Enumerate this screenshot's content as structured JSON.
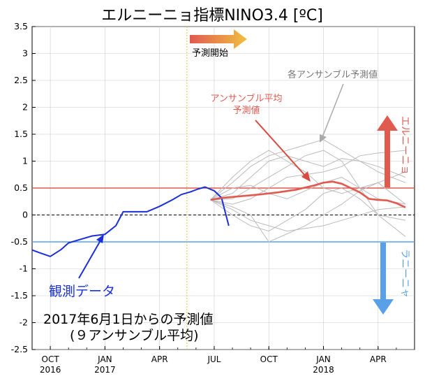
{
  "chart_data": {
    "type": "line",
    "title": "エルニーニョ指標NINO3.4 [ºC]",
    "ylim": [
      -2.5,
      3.5
    ],
    "yticks": [
      "3.5",
      "3",
      "2.5",
      "2",
      "1.5",
      "1",
      "0.5",
      "0",
      "-0.5",
      "-1",
      "-1.5",
      "-2",
      "-2.5"
    ],
    "ytick_values": [
      3.5,
      3,
      2.5,
      2,
      1.5,
      1,
      0.5,
      0,
      -0.5,
      -1,
      -1.5,
      -2,
      -2.5
    ],
    "xticks": [
      {
        "label": "OCT",
        "year": "2016",
        "month_index": 0
      },
      {
        "label": "JAN",
        "year": "2017",
        "month_index": 3
      },
      {
        "label": "APR",
        "year": "",
        "month_index": 6
      },
      {
        "label": "JUL",
        "year": "",
        "month_index": 9
      },
      {
        "label": "OCT",
        "year": "",
        "month_index": 12
      },
      {
        "label": "JAN",
        "year": "2018",
        "month_index": 15
      },
      {
        "label": "APR",
        "year": "",
        "month_index": 18
      }
    ],
    "xlim": [
      -1,
      20
    ],
    "forecast_start": 7.5,
    "thresholds": [
      {
        "value": 0.5,
        "color": "#e05a50"
      },
      {
        "value": -0.5,
        "color": "#5aa0e8"
      },
      {
        "value": 0,
        "color": "#000000"
      }
    ],
    "series": [
      {
        "name": "観測データ",
        "color": "#1a2fd6",
        "x": [
          -1,
          -0.6,
          0,
          0.6,
          1,
          1.7,
          2.3,
          3,
          3.6,
          4,
          4.7,
          5.3,
          6,
          6.7,
          7.2,
          7.7,
          8.1,
          8.5,
          9,
          9.4,
          9.8
        ],
        "y": [
          -0.65,
          -0.7,
          -0.77,
          -0.64,
          -0.52,
          -0.45,
          -0.39,
          -0.36,
          -0.2,
          0.06,
          0.06,
          0.06,
          0.16,
          0.28,
          0.38,
          0.43,
          0.48,
          0.52,
          0.45,
          0.32,
          -0.2
        ]
      },
      {
        "name": "アンサンブル平均",
        "color": "#e05a50",
        "x": [
          8.8,
          9.5,
          10.5,
          11.5,
          12.5,
          13.5,
          14.5,
          15,
          15.5,
          16,
          16.5,
          17,
          17.5,
          18,
          18.5,
          19,
          19.5
        ],
        "y": [
          0.28,
          0.32,
          0.35,
          0.38,
          0.42,
          0.47,
          0.55,
          0.6,
          0.62,
          0.58,
          0.5,
          0.42,
          0.3,
          0.28,
          0.27,
          0.22,
          0.14
        ]
      }
    ],
    "members": [
      {
        "x": [
          8.8,
          10,
          11,
          12,
          13,
          14,
          15,
          16,
          17,
          18,
          19.5
        ],
        "y": [
          0.28,
          0.1,
          -0.1,
          -0.2,
          -0.3,
          -0.25,
          -0.2,
          -0.1,
          0.0,
          0.1,
          0.15
        ]
      },
      {
        "x": [
          8.8,
          10,
          11,
          12,
          13,
          14,
          15,
          16,
          17,
          18,
          19.5
        ],
        "y": [
          0.28,
          0.6,
          0.9,
          1.1,
          1.2,
          1.3,
          1.4,
          1.2,
          1.0,
          0.8,
          0.6
        ]
      },
      {
        "x": [
          8.8,
          10,
          11,
          12,
          13,
          14,
          15,
          16,
          17,
          18,
          19.5
        ],
        "y": [
          0.28,
          0.4,
          0.7,
          1.0,
          1.1,
          1.0,
          0.9,
          1.05,
          1.0,
          0.9,
          0.7
        ]
      },
      {
        "x": [
          8.8,
          10,
          11,
          12,
          13,
          14,
          15,
          16,
          17,
          18,
          19.5
        ],
        "y": [
          0.28,
          0.2,
          0.3,
          0.5,
          0.7,
          0.75,
          0.8,
          0.9,
          1.1,
          1.15,
          1.2
        ]
      },
      {
        "x": [
          8.8,
          10,
          11,
          12,
          13,
          14,
          15,
          16,
          17,
          18,
          19.5
        ],
        "y": [
          0.28,
          0.0,
          -0.2,
          -0.3,
          -0.1,
          0.1,
          0.4,
          0.5,
          0.3,
          0.0,
          -0.4
        ]
      },
      {
        "x": [
          8.8,
          10,
          11,
          12,
          13,
          14,
          15,
          16,
          17,
          18,
          19.5
        ],
        "y": [
          0.28,
          0.5,
          0.55,
          0.4,
          0.3,
          0.45,
          0.6,
          0.7,
          0.5,
          0.3,
          0.2
        ]
      },
      {
        "x": [
          8.8,
          10,
          11,
          12,
          13,
          14,
          15,
          16,
          17,
          18,
          19.5
        ],
        "y": [
          0.28,
          0.15,
          0.0,
          -0.5,
          -0.35,
          -0.2,
          0.0,
          0.2,
          0.45,
          0.6,
          0.8
        ]
      },
      {
        "x": [
          8.8,
          10,
          11,
          12,
          13,
          14,
          15,
          16,
          17,
          18,
          19.5
        ],
        "y": [
          0.28,
          0.3,
          0.5,
          0.7,
          0.9,
          1.1,
          1.2,
          1.0,
          0.5,
          0.0,
          -0.1
        ]
      },
      {
        "x": [
          8.8,
          10,
          11,
          12,
          13,
          14,
          15,
          16,
          17,
          18,
          19.5
        ],
        "y": [
          0.28,
          0.7,
          1.0,
          1.2,
          1.0,
          0.8,
          0.5,
          0.4,
          0.5,
          0.6,
          0.2
        ]
      }
    ],
    "member_color": "#bbbbbb",
    "annotations": {
      "forecast_start_label": "予測開始",
      "members_label": "各アンサンブル予測値",
      "mean_label_line1": "アンサンブル平均",
      "mean_label_line2": "予測値",
      "observed_label": "観測データ",
      "elnino_label": "エルニーニョ",
      "lanina_label": "ラニーニャ",
      "caption_line1": "2017年6月1日からの予測値",
      "caption_line2": "(９アンサンブル平均)"
    },
    "colors": {
      "forecast_arrow": "#e0a040",
      "elnino_arrow": "#e05a50",
      "lanina_arrow": "#5aa0e8",
      "start_line": "#e8c040"
    }
  }
}
